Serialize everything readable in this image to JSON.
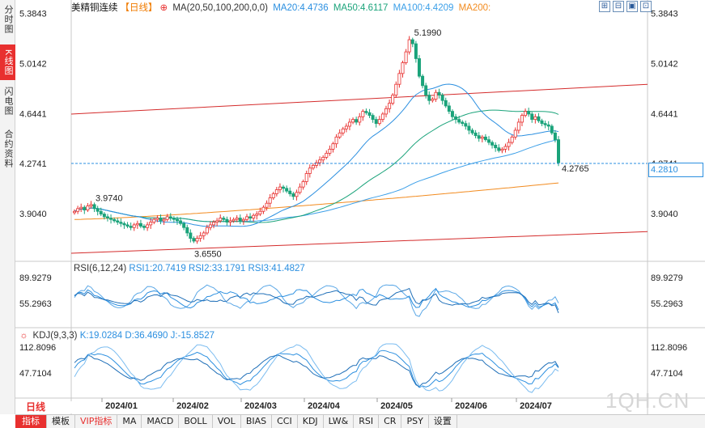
{
  "side_tabs": [
    {
      "label": "分时图",
      "active": false
    },
    {
      "label": "K线图",
      "active": true
    },
    {
      "label": "闪电图",
      "active": false
    },
    {
      "label": "合约资料",
      "active": false
    }
  ],
  "header": {
    "symbol": "美精铜连续",
    "period": "【日线】",
    "ma_label": "MA(20,50,100,200,0,0)",
    "ma20": "MA20:4.4736",
    "ma50": "MA50:4.6117",
    "ma100": "MA100:4.4209",
    "ma200": "MA200:"
  },
  "window_buttons": [
    "⊞",
    "⊟",
    "▣",
    "⊡"
  ],
  "price_axis": {
    "left_ticks": [
      "5.3843",
      "5.0142",
      "4.6441",
      "4.2741",
      "3.9040"
    ],
    "right_ticks": [
      "5.3843",
      "5.0142",
      "4.6441",
      "4.2741",
      "3.9040"
    ],
    "current_price": "4.2810",
    "last_close_label": "4.2765",
    "high_label": "5.1990",
    "low_label": "3.6550",
    "early_high_label": "3.9740"
  },
  "rsi": {
    "title": "RSI(6,12,24)",
    "rsi1": "RSI1:20.7419",
    "rsi2": "RSI2:33.1791",
    "rsi3": "RSI3:41.4827",
    "ticks": [
      "89.9279",
      "55.2963"
    ]
  },
  "kdj": {
    "title": "KDJ(9,3,3)",
    "k": "K:19.0284",
    "d": "D:36.4690",
    "j": "J:-15.8527",
    "ticks": [
      "112.8096",
      "47.7104"
    ]
  },
  "time_axis": [
    "2024/01",
    "2024/02",
    "2024/03",
    "2024/04",
    "2024/05",
    "2024/06",
    "2024/07"
  ],
  "period_badge": "日线",
  "bottom_tabs": [
    "指标",
    "模板",
    "VIP指标",
    "MA",
    "MACD",
    "BOLL",
    "VOL",
    "BIAS",
    "CCI",
    "KDJ",
    "LW&",
    "RSI",
    "CR",
    "PSY",
    "设置"
  ],
  "watermark": "1QH.CN",
  "chart_data": {
    "type": "candlestick",
    "closes": [
      3.92,
      3.94,
      3.95,
      3.93,
      3.96,
      3.97,
      3.94,
      3.92,
      3.9,
      3.88,
      3.87,
      3.86,
      3.85,
      3.84,
      3.83,
      3.82,
      3.81,
      3.8,
      3.82,
      3.83,
      3.81,
      3.8,
      3.82,
      3.84,
      3.86,
      3.87,
      3.85,
      3.86,
      3.88,
      3.87,
      3.86,
      3.85,
      3.83,
      3.8,
      3.76,
      3.72,
      3.7,
      3.72,
      3.74,
      3.76,
      3.8,
      3.82,
      3.84,
      3.85,
      3.87,
      3.86,
      3.84,
      3.85,
      3.86,
      3.87,
      3.85,
      3.86,
      3.88,
      3.87,
      3.89,
      3.9,
      3.92,
      3.95,
      3.98,
      4.02,
      4.05,
      4.08,
      4.1,
      4.09,
      4.07,
      4.05,
      4.03,
      4.06,
      4.1,
      4.14,
      4.2,
      4.24,
      4.26,
      4.28,
      4.3,
      4.32,
      4.35,
      4.38,
      4.42,
      4.47,
      4.5,
      4.53,
      4.55,
      4.58,
      4.6,
      4.58,
      4.62,
      4.66,
      4.65,
      4.63,
      4.6,
      4.57,
      4.6,
      4.64,
      4.68,
      4.72,
      4.78,
      4.86,
      4.94,
      5.02,
      5.1,
      5.19,
      5.16,
      5.05,
      4.92,
      4.85,
      4.78,
      4.74,
      4.75,
      4.8,
      4.78,
      4.74,
      4.7,
      4.66,
      4.62,
      4.6,
      4.58,
      4.57,
      4.55,
      4.52,
      4.5,
      4.48,
      4.46,
      4.47,
      4.45,
      4.43,
      4.41,
      4.39,
      4.37,
      4.38,
      4.4,
      4.43,
      4.47,
      4.52,
      4.58,
      4.63,
      4.66,
      4.64,
      4.6,
      4.62,
      4.59,
      4.57,
      4.56,
      4.55,
      4.5,
      4.45,
      4.28
    ],
    "ma200_start": 3.86,
    "ma200_end": 4.13,
    "channel_upper": [
      4.64,
      4.86
    ],
    "channel_lower": [
      3.61,
      3.77
    ],
    "ylim": [
      3.58,
      5.4
    ],
    "rsi_ticks": [
      89.9279,
      55.2963
    ],
    "kdj_ticks": [
      112.8096,
      47.7104
    ]
  }
}
